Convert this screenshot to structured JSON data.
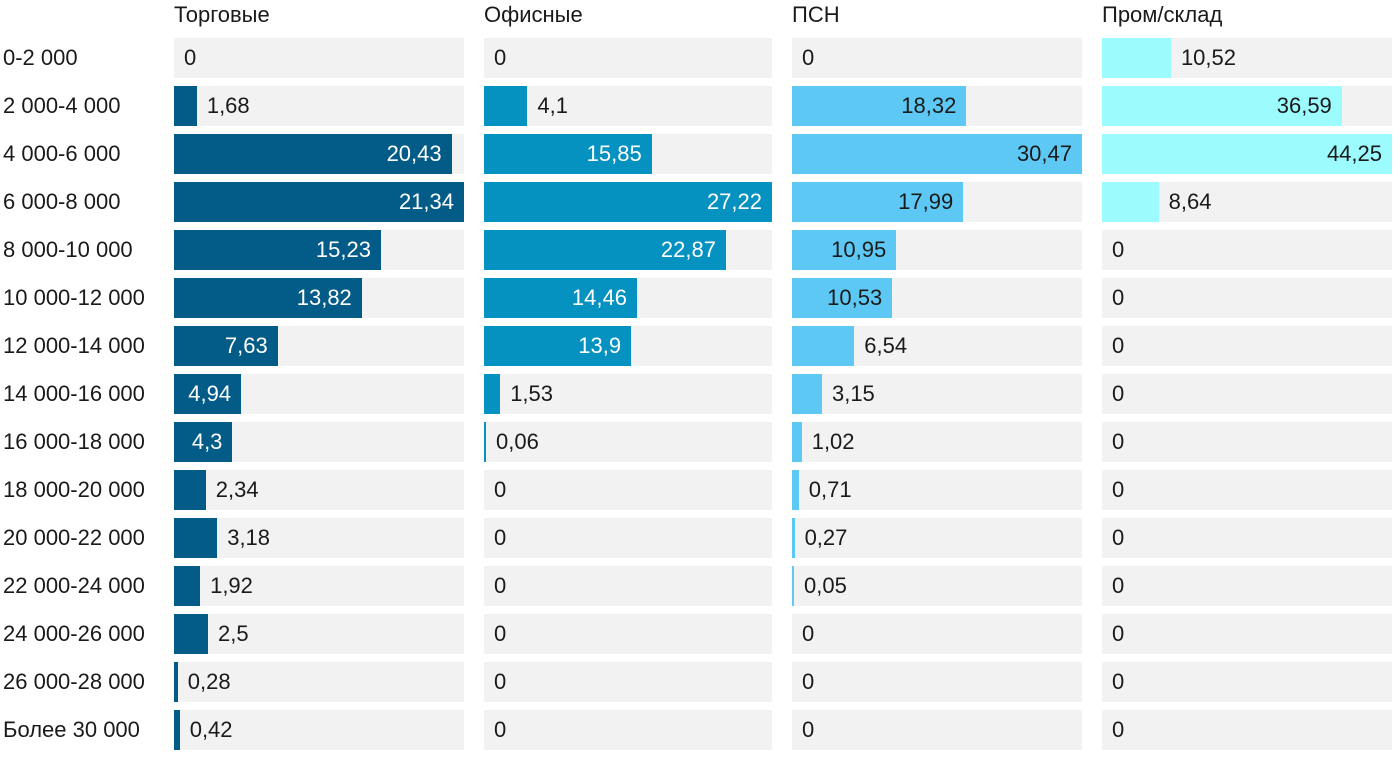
{
  "chart_data": {
    "type": "bar",
    "orientation": "horizontal",
    "layout": "small-multiples",
    "categories": [
      "0-2 000",
      "2 000-4 000",
      "4 000-6 000",
      "6 000-8 000",
      "8 000-10 000",
      "10 000-12 000",
      "12 000-14 000",
      "14 000-16 000",
      "16 000-18 000",
      "18 000-20 000",
      "20 000-22 000",
      "22 000-24 000",
      "24 000-26 000",
      "26 000-28 000",
      "Более 30 000"
    ],
    "series": [
      {
        "name": "Торговые",
        "color": "#035c87",
        "label_inside_color": "#ffffff",
        "values": [
          0,
          1.68,
          20.43,
          21.34,
          15.23,
          13.82,
          7.63,
          4.94,
          4.3,
          2.34,
          3.18,
          1.92,
          2.5,
          0.28,
          0.42
        ],
        "labels": [
          "0",
          "1,68",
          "20,43",
          "21,34",
          "15,23",
          "13,82",
          "7,63",
          "4,94",
          "4,3",
          "2,34",
          "3,18",
          "1,92",
          "2,5",
          "0,28",
          "0,42"
        ]
      },
      {
        "name": "Офисные",
        "color": "#0592c0",
        "label_inside_color": "#ffffff",
        "values": [
          0,
          4.1,
          15.85,
          27.22,
          22.87,
          14.46,
          13.9,
          1.53,
          0.06,
          0,
          0,
          0,
          0,
          0,
          0
        ],
        "labels": [
          "0",
          "4,1",
          "15,85",
          "27,22",
          "22,87",
          "14,46",
          "13,9",
          "1,53",
          "0,06",
          "0",
          "0",
          "0",
          "0",
          "0",
          "0"
        ]
      },
      {
        "name": "ПСН",
        "color": "#5ec8f4",
        "label_inside_color": "#1a1a1a",
        "values": [
          0,
          18.32,
          30.47,
          17.99,
          10.95,
          10.53,
          6.54,
          3.15,
          1.02,
          0.71,
          0.27,
          0.05,
          0,
          0,
          0
        ],
        "labels": [
          "0",
          "18,32",
          "30,47",
          "17,99",
          "10,95",
          "10,53",
          "6,54",
          "3,15",
          "1,02",
          "0,71",
          "0,27",
          "0,05",
          "0",
          "0",
          "0"
        ]
      },
      {
        "name": "Пром/склад",
        "color": "#9bfbfd",
        "label_inside_color": "#1a1a1a",
        "values": [
          10.52,
          36.59,
          44.25,
          8.64,
          0,
          0,
          0,
          0,
          0,
          0,
          0,
          0,
          0,
          0,
          0
        ],
        "labels": [
          "10,52",
          "36,59",
          "44,25",
          "8,64",
          "0",
          "0",
          "0",
          "0",
          "0",
          "0",
          "0",
          "0",
          "0",
          "0",
          "0"
        ]
      }
    ],
    "grid": false,
    "legend": "none"
  }
}
